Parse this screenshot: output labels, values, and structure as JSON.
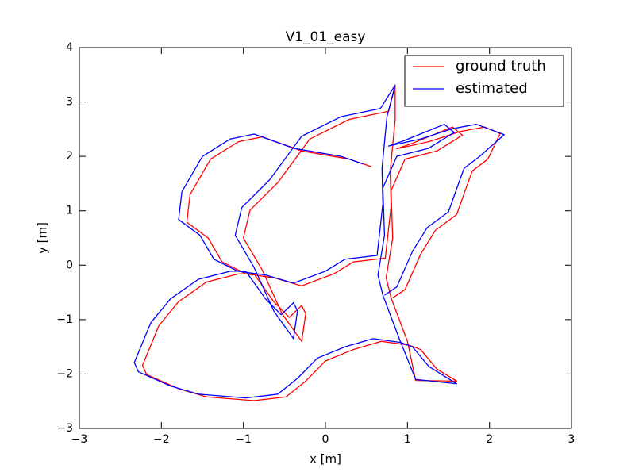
{
  "chart_data": {
    "type": "line",
    "title": "V1_01_easy",
    "xlabel": "x [m]",
    "ylabel": "y [m]",
    "xlim": [
      -3,
      3
    ],
    "ylim": [
      -3,
      4
    ],
    "xticks": [
      {
        "value": -3,
        "label": "−3"
      },
      {
        "value": -2,
        "label": "−2"
      },
      {
        "value": -1,
        "label": "−1"
      },
      0,
      1,
      2,
      3
    ],
    "yticks": [
      {
        "value": -3,
        "label": "−3"
      },
      {
        "value": -2,
        "label": "−2"
      },
      {
        "value": -1,
        "label": "−1"
      },
      0,
      1,
      2,
      3,
      4
    ],
    "legend": "upper right",
    "grid": false,
    "series": [
      {
        "name": "ground truth",
        "color": "#ff0000",
        "x": [
          0.56,
          0.29,
          -0.29,
          -0.77,
          -1.06,
          -1.4,
          -1.65,
          -1.69,
          -1.43,
          -1.26,
          -0.97,
          -0.63,
          -0.29,
          0.1,
          0.34,
          0.73,
          0.8,
          0.79,
          0.85,
          0.85,
          0.77,
          0.29,
          -0.19,
          -0.58,
          -0.92,
          -1.0,
          -0.77,
          -0.53,
          -0.29,
          -0.24,
          -0.29,
          -0.44,
          -0.63,
          -0.87,
          -1.06,
          -1.45,
          -1.79,
          -2.03,
          -2.23,
          -2.18,
          -1.79,
          -1.45,
          -0.87,
          -0.48,
          -0.24,
          0.0,
          0.34,
          0.68,
          1.02,
          1.16,
          1.36,
          1.6,
          1.1,
          1.0,
          0.8,
          0.74,
          0.82,
          0.8,
          0.97,
          1.36,
          1.67,
          1.55,
          1.06,
          0.87,
          1.26,
          1.65,
          1.94,
          2.13,
          1.98,
          1.79,
          1.72,
          1.6,
          1.34,
          1.16,
          0.97,
          0.82
        ],
        "values": [
          1.81,
          1.95,
          2.1,
          2.36,
          2.27,
          1.95,
          1.3,
          0.79,
          0.5,
          0.06,
          -0.16,
          -0.23,
          -0.38,
          -0.16,
          0.06,
          0.13,
          1.08,
          1.73,
          2.68,
          3.29,
          2.83,
          2.68,
          2.32,
          1.52,
          1.01,
          0.5,
          -0.09,
          -0.89,
          -1.4,
          -0.89,
          -0.74,
          -0.96,
          -0.67,
          -0.16,
          -0.16,
          -0.31,
          -0.67,
          -1.11,
          -1.84,
          -2.01,
          -2.27,
          -2.42,
          -2.49,
          -2.42,
          -2.13,
          -1.76,
          -1.55,
          -1.4,
          -1.47,
          -1.55,
          -1.91,
          -2.13,
          -2.12,
          -1.4,
          -0.6,
          -0.23,
          0.5,
          1.37,
          1.95,
          2.1,
          2.39,
          2.54,
          2.24,
          2.14,
          2.27,
          2.46,
          2.54,
          2.42,
          1.95,
          1.73,
          1.44,
          0.93,
          0.64,
          0.2,
          -0.45,
          -0.6
        ]
      },
      {
        "name": "estimated",
        "color": "#0000ff",
        "x": [
          0.46,
          0.19,
          -0.39,
          -0.87,
          -1.16,
          -1.5,
          -1.75,
          -1.79,
          -1.53,
          -1.36,
          -1.07,
          -0.73,
          -0.39,
          0.0,
          0.24,
          0.63,
          0.7,
          0.69,
          0.75,
          0.85,
          0.67,
          0.19,
          -0.29,
          -0.68,
          -1.02,
          -1.1,
          -0.87,
          -0.63,
          -0.39,
          -0.34,
          -0.39,
          -0.54,
          -0.73,
          -0.97,
          -1.16,
          -1.55,
          -1.89,
          -2.13,
          -2.33,
          -2.28,
          -1.89,
          -1.55,
          -0.97,
          -0.58,
          -0.34,
          -0.1,
          0.24,
          0.58,
          0.92,
          1.06,
          1.26,
          1.6,
          1.1,
          0.9,
          0.7,
          0.64,
          0.72,
          0.7,
          0.87,
          1.26,
          1.57,
          1.45,
          0.96,
          0.77,
          1.16,
          1.55,
          1.84,
          2.18,
          1.88,
          1.69,
          1.62,
          1.5,
          1.24,
          1.06,
          0.87,
          0.72
        ],
        "values": [
          1.86,
          2.0,
          2.15,
          2.41,
          2.32,
          2.0,
          1.35,
          0.84,
          0.55,
          0.11,
          -0.11,
          -0.18,
          -0.33,
          -0.11,
          0.11,
          0.18,
          1.13,
          1.78,
          2.73,
          3.31,
          2.88,
          2.73,
          2.37,
          1.57,
          1.06,
          0.55,
          -0.04,
          -0.84,
          -1.35,
          -0.84,
          -0.69,
          -0.91,
          -0.62,
          -0.11,
          -0.11,
          -0.26,
          -0.62,
          -1.06,
          -1.79,
          -1.96,
          -2.22,
          -2.37,
          -2.44,
          -2.37,
          -2.08,
          -1.71,
          -1.5,
          -1.35,
          -1.42,
          -1.5,
          -1.86,
          -2.18,
          -2.1,
          -1.35,
          -0.55,
          -0.18,
          0.55,
          1.42,
          2.0,
          2.15,
          2.44,
          2.59,
          2.29,
          2.19,
          2.32,
          2.51,
          2.59,
          2.4,
          2.0,
          1.78,
          1.49,
          0.98,
          0.69,
          0.25,
          -0.4,
          -0.55
        ]
      }
    ]
  }
}
